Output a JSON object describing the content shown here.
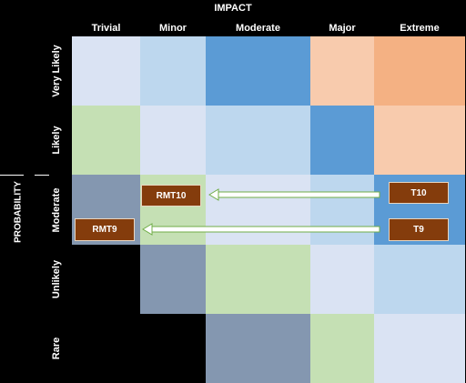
{
  "impact": {
    "title": "IMPACT",
    "columns": [
      "Trivial",
      "Minor",
      "Moderate",
      "Major",
      "Extreme"
    ]
  },
  "probability": {
    "title": "PROBABILITY",
    "rows": [
      "Very Likely",
      "Likely",
      "Moderate",
      "Unlikely",
      "Rare"
    ]
  },
  "colors": {
    "very_light_blue": "#dae3f3",
    "light_blue": "#bdd7ee",
    "blue": "#5b9bd5",
    "light_peach": "#f8cbad",
    "peach": "#f4b183",
    "light_green": "#c5e0b4",
    "slate": "#8497b0",
    "black": "#000000",
    "tag_fill": "#843c0c"
  },
  "matrix": [
    [
      "very_light_blue",
      "light_blue",
      "blue",
      "light_peach",
      "peach"
    ],
    [
      "light_green",
      "very_light_blue",
      "light_blue",
      "blue",
      "light_peach"
    ],
    [
      "slate",
      "light_green",
      "very_light_blue",
      "light_blue",
      "blue"
    ],
    [
      "black",
      "slate",
      "light_green",
      "very_light_blue",
      "light_blue"
    ],
    [
      "black",
      "black",
      "slate",
      "light_green",
      "very_light_blue"
    ]
  ],
  "tags": {
    "rmt10": "RMT10",
    "rmt9": "RMT9",
    "t10": "T10",
    "t9": "T9"
  }
}
